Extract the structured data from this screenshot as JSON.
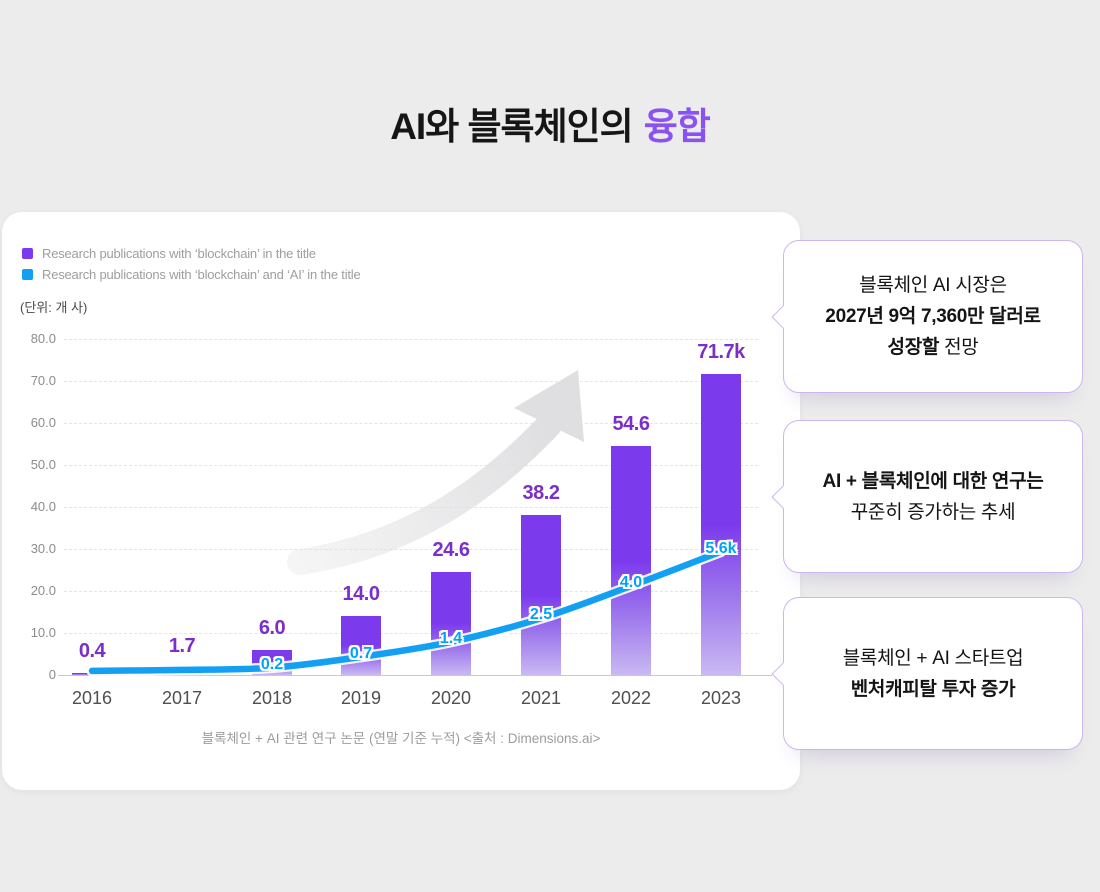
{
  "header": {
    "title_prefix": "AI와 블록체인의",
    "title_accent": "융합",
    "accent_color": "#8B52F2"
  },
  "chart_data": {
    "type": "bar+line",
    "categories": [
      "2016",
      "2017",
      "2018",
      "2019",
      "2020",
      "2021",
      "2022",
      "2023"
    ],
    "series": [
      {
        "name": "Research publications with ‘blockchain’ in the title",
        "type": "bar",
        "color": "#7C3AED",
        "color_fade": "#C9B9F3",
        "label_color": "#7B2FC8",
        "values": [
          0.4,
          1.7,
          6.0,
          14.0,
          24.6,
          38.2,
          54.6,
          71.7
        ],
        "value_labels": [
          "0.4",
          "1.7",
          "6.0",
          "14.0",
          "24.6",
          "38.2",
          "54.6",
          "71.7k"
        ]
      },
      {
        "name": "Research publications with ‘blockchain’ and ‘AI’ in the title",
        "type": "line",
        "color": "#14A0F2",
        "label_color": "#00A3F7",
        "values": [
          0.05,
          0.1,
          0.2,
          0.7,
          1.4,
          2.5,
          4.0,
          5.6
        ],
        "value_labels": [
          "",
          "",
          "0.2",
          "0.7",
          "1.4",
          "2.5",
          "4.0",
          "5.6k"
        ]
      }
    ],
    "unit_label": "(단위: 개 사)",
    "y_ticks": [
      "80.0",
      "70.0",
      "60.0",
      "50.0",
      "40.0",
      "30.0",
      "20.0",
      "10.0",
      "0"
    ],
    "ylim": [
      0,
      80
    ],
    "y2lim": [
      0,
      16
    ],
    "grid": "horizontal-dashed",
    "legend_position": "top-left",
    "caption": "블록체인 + AI 관련 연구 논문 (연말 기준 누적) <출처 : Dimensions.ai>"
  },
  "callouts": [
    {
      "lines": [
        [
          {
            "text": "블록체인 AI 시장은",
            "bold": false
          }
        ],
        [
          {
            "text": "2027년 9억 7,360만 달러로",
            "bold": true
          }
        ],
        [
          {
            "text": "성장할",
            "bold": true
          },
          {
            "text": " 전망",
            "bold": false
          }
        ]
      ]
    },
    {
      "lines": [
        [
          {
            "text": "AI + 블록체인에 대한 연구는",
            "bold": true
          }
        ],
        [
          {
            "text": "꾸준히 증가하는 추세",
            "bold": false
          }
        ]
      ]
    },
    {
      "lines": [
        [
          {
            "text": "블록체인 + AI 스타트업",
            "bold": false
          }
        ],
        [
          {
            "text": "벤처캐피탈 투자 증가",
            "bold": true
          }
        ]
      ]
    }
  ]
}
